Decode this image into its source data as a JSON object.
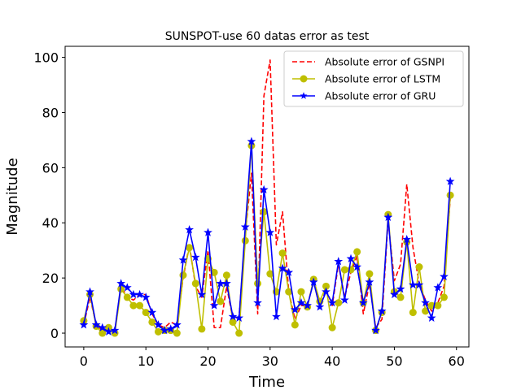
{
  "chart_data": {
    "type": "line",
    "title": "SUNSPOT-use 60 datas error as test",
    "xlabel": "Time",
    "ylabel": "Magnitude",
    "xlim": [
      -3,
      62
    ],
    "ylim": [
      -5,
      104
    ],
    "xticks": [
      0,
      10,
      20,
      30,
      40,
      50,
      60
    ],
    "yticks": [
      0,
      20,
      40,
      60,
      80,
      100
    ],
    "grid": false,
    "legend_position": "top-right",
    "x": [
      0,
      1,
      2,
      3,
      4,
      5,
      6,
      7,
      8,
      9,
      10,
      11,
      12,
      13,
      14,
      15,
      16,
      17,
      18,
      19,
      20,
      21,
      22,
      23,
      24,
      25,
      26,
      27,
      28,
      29,
      30,
      31,
      32,
      33,
      34,
      35,
      36,
      37,
      38,
      39,
      40,
      41,
      42,
      43,
      44,
      45,
      46,
      47,
      48,
      49,
      50,
      51,
      52,
      53,
      54,
      55,
      56,
      57,
      58,
      59
    ],
    "series": [
      {
        "name": "Absolute error of GSNPI",
        "color": "#ff0000",
        "style": "dashed",
        "marker": "none",
        "values": [
          3,
          13,
          3,
          1,
          1,
          1,
          17,
          13,
          12,
          14,
          14,
          7,
          3,
          2,
          4,
          3,
          20,
          32,
          17,
          13,
          30,
          2,
          2,
          17,
          5,
          6,
          36,
          58,
          7,
          86,
          99,
          32,
          44,
          15,
          5,
          10,
          10,
          19,
          9,
          16,
          10,
          25,
          13,
          22,
          28,
          7,
          18,
          2,
          5,
          41,
          19,
          25,
          54,
          31,
          18,
          12,
          8,
          11,
          17,
          49
        ]
      },
      {
        "name": "Absolute error of LSTM",
        "color": "#bfbf00",
        "style": "solid",
        "marker": "circle",
        "values": [
          4.5,
          14,
          2.5,
          0,
          2,
          0,
          16,
          13,
          10,
          10,
          7.5,
          4,
          0.5,
          1,
          1,
          0,
          21,
          31,
          18,
          1.5,
          27,
          22,
          11.5,
          21,
          4,
          0,
          33.5,
          68,
          18,
          44,
          21.5,
          15,
          29,
          15,
          3,
          15,
          9.5,
          19.5,
          11.5,
          17,
          2,
          11,
          23,
          23,
          29.5,
          11,
          21.5,
          1,
          7.5,
          43,
          15,
          13,
          33,
          7.5,
          24,
          8,
          10,
          10,
          13,
          50
        ]
      },
      {
        "name": "Absolute error of GRU",
        "color": "#0000ff",
        "style": "solid",
        "marker": "star",
        "values": [
          3,
          15,
          3,
          2,
          0.5,
          1,
          18,
          16.5,
          14,
          14,
          13,
          7.5,
          3,
          1,
          1.5,
          3,
          26.5,
          37.5,
          27.5,
          14,
          36.5,
          10,
          18,
          18,
          6,
          5.5,
          38.5,
          69.5,
          11,
          52,
          36.5,
          6,
          23.5,
          22,
          8.5,
          11,
          10,
          18.5,
          9.5,
          15,
          11,
          26,
          12,
          27,
          24,
          11,
          18.5,
          1,
          8,
          42,
          14,
          16,
          34,
          17.5,
          17.5,
          11,
          5.5,
          16.5,
          20.5,
          55
        ]
      }
    ]
  }
}
